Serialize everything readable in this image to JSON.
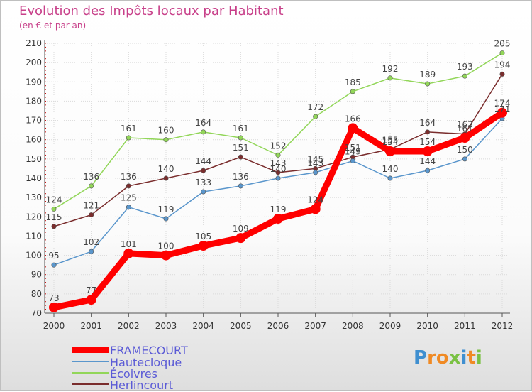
{
  "chart_data": {
    "type": "line",
    "title": "Evolution des Impôts locaux par Habitant",
    "subtitle": "(en € et par an)",
    "x": [
      "2000",
      "2001",
      "2002",
      "2003",
      "2004",
      "2005",
      "2006",
      "2007",
      "2008",
      "2009",
      "2010",
      "2011",
      "2012"
    ],
    "ylim": [
      70,
      210
    ],
    "yticks": [
      70,
      80,
      90,
      100,
      110,
      120,
      130,
      140,
      150,
      160,
      170,
      180,
      190,
      200,
      210
    ],
    "grid": true,
    "legend_position": "bottom-left",
    "series": [
      {
        "name": "FRAMECOURT",
        "color": "#ff0000",
        "values": [
          73,
          77,
          101,
          100,
          105,
          109,
          119,
          124,
          166,
          154,
          154,
          161,
          174
        ]
      },
      {
        "name": "Hautecloque",
        "color": "#5a96cc",
        "values": [
          95,
          102,
          125,
          119,
          133,
          136,
          140,
          143,
          149,
          140,
          144,
          150,
          171
        ]
      },
      {
        "name": "Écoivres",
        "color": "#92d659",
        "values": [
          124,
          136,
          161,
          160,
          164,
          161,
          152,
          172,
          185,
          192,
          189,
          193,
          205
        ]
      },
      {
        "name": "Herlincourt",
        "color": "#7a2d2d",
        "values": [
          115,
          121,
          136,
          140,
          144,
          151,
          143,
          145,
          151,
          155,
          164,
          163,
          194
        ]
      }
    ]
  },
  "legend": {
    "items": [
      "FRAMECOURT",
      "Hautecloque",
      "Écoivres",
      "Herlincourt"
    ]
  },
  "brand": {
    "letters": [
      "P",
      "r",
      "o",
      "x",
      "i",
      "t",
      "i"
    ],
    "colors": [
      "#3f8fd0",
      "#f08a24",
      "#f08a24",
      "#7ac143",
      "#3f8fd0",
      "#f08a24",
      "#7ac143"
    ]
  }
}
